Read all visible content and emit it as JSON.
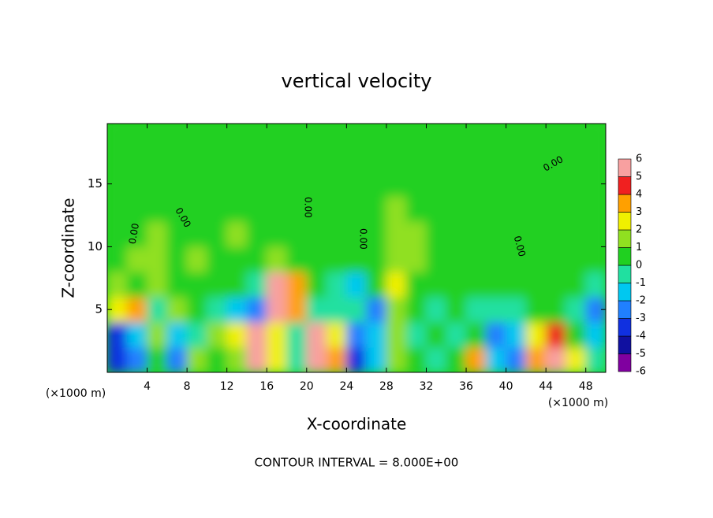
{
  "chart_data": {
    "type": "heatmap",
    "title": "vertical velocity",
    "x_label": "X-coordinate",
    "y_label": "Z-coordinate",
    "x_unit": "(×1000 m)",
    "footer": "CONTOUR INTERVAL = 8.000E+00",
    "contour_label": "0.00",
    "xlim": [
      0,
      50
    ],
    "ylim": [
      0,
      19.8
    ],
    "xticks": [
      4,
      8,
      12,
      16,
      20,
      24,
      28,
      32,
      36,
      40,
      44,
      48
    ],
    "yticks": [
      5,
      10,
      15
    ],
    "x": [
      1,
      3,
      5,
      7,
      9,
      11,
      13,
      15,
      17,
      19,
      21,
      23,
      25,
      27,
      29,
      31,
      33,
      35,
      37,
      39,
      41,
      43,
      45,
      47,
      49
    ],
    "y": [
      1,
      3,
      5,
      7,
      9,
      11,
      13,
      15,
      17,
      19
    ],
    "z": [
      [
        -4,
        -3,
        0,
        -3,
        1,
        0,
        1,
        6,
        2,
        -1,
        6,
        3,
        -4,
        -2,
        1,
        0,
        -1,
        0,
        3,
        -2,
        -3,
        3,
        6,
        2,
        -1
      ],
      [
        -4,
        -2,
        1,
        -2,
        -1,
        1,
        2,
        5,
        2,
        -1,
        5,
        2,
        -3,
        -2,
        1,
        -1,
        0,
        -1,
        0,
        -3,
        -2,
        2,
        4,
        0,
        -2
      ],
      [
        2,
        3,
        -1,
        1,
        0,
        -1,
        -2,
        -3,
        6,
        3,
        -1,
        -1,
        -1,
        -3,
        1,
        0,
        -1,
        0,
        -1,
        -1,
        -1,
        0,
        0,
        -1,
        -3
      ],
      [
        1,
        0,
        1,
        0,
        0,
        0,
        0,
        -1,
        5,
        3,
        0,
        -1,
        -2,
        0,
        2,
        0,
        0,
        0,
        0,
        0,
        0,
        0,
        0,
        0,
        -1
      ],
      [
        0,
        1,
        1,
        0,
        1,
        0,
        0,
        0,
        1,
        0,
        0,
        0,
        0,
        0,
        1,
        1,
        0,
        0,
        0,
        0,
        0,
        0,
        0,
        0,
        0
      ],
      [
        0,
        0,
        1,
        0,
        0,
        0,
        1,
        0,
        0,
        0,
        0,
        0,
        0,
        0,
        1,
        1,
        0,
        0,
        0,
        0,
        0,
        0,
        0,
        0,
        0
      ],
      [
        0,
        0,
        0,
        0,
        0,
        0,
        0,
        0,
        0,
        0,
        0,
        0,
        0,
        0,
        1,
        0,
        0,
        0,
        0,
        0,
        0,
        0,
        0,
        0,
        0
      ],
      [
        0,
        0,
        0,
        0,
        0,
        0,
        0,
        0,
        0,
        0,
        0,
        0,
        0,
        0,
        0,
        0,
        0,
        0,
        0,
        0,
        0,
        0,
        0,
        0,
        0
      ],
      [
        0,
        0,
        0,
        0,
        0,
        0,
        0,
        0,
        0,
        0,
        0,
        0,
        0,
        0,
        0,
        0,
        0,
        0,
        0,
        0,
        0,
        0,
        0,
        0,
        0
      ],
      [
        0,
        0,
        0,
        0,
        0,
        0,
        0,
        0,
        0,
        0,
        0,
        0,
        0,
        0,
        0,
        0,
        0,
        0,
        0,
        0,
        0,
        0,
        0,
        0,
        0
      ]
    ],
    "levels": [
      -6,
      -5,
      -4,
      -3,
      -2,
      -1,
      0,
      1,
      2,
      3,
      4,
      5,
      6
    ],
    "colors": [
      "#8000a0",
      "#1010a0",
      "#1030e0",
      "#2080ff",
      "#00c8f0",
      "#20e0a0",
      "#20d020",
      "#90e020",
      "#f0f000",
      "#ffa000",
      "#f02020",
      "#f8a0a0"
    ]
  }
}
